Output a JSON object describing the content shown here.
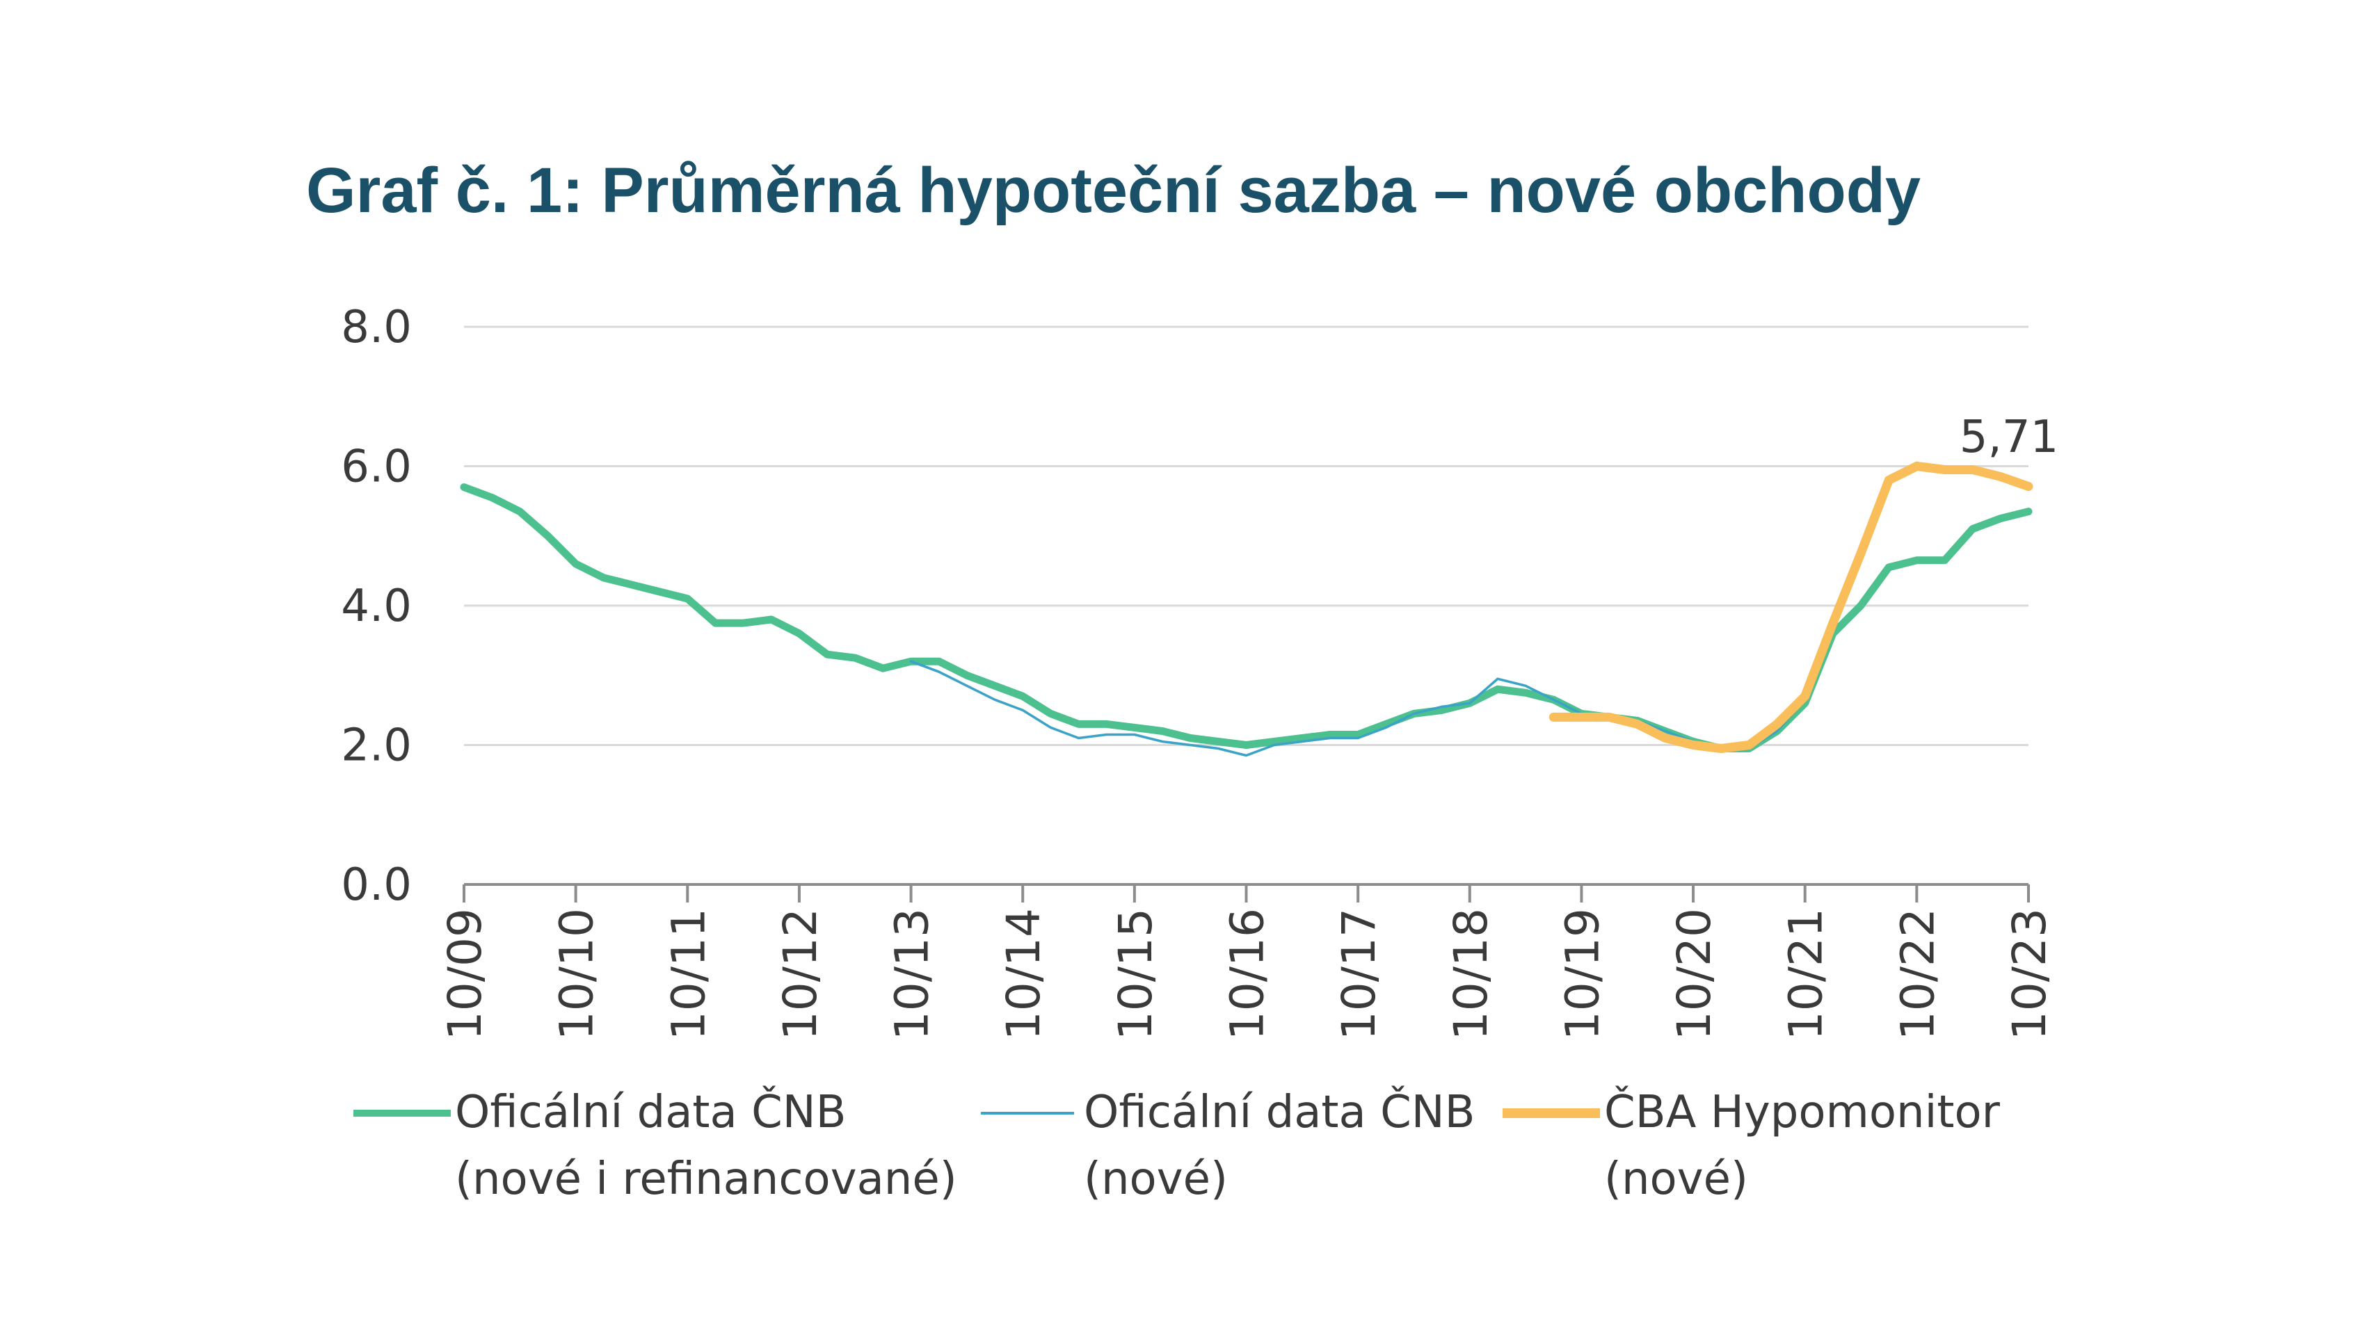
{
  "chart_data": {
    "type": "line",
    "title": "Graf č. 1: Průměrná hypoteční sazba – nové obchody",
    "xlabel": "",
    "ylabel": "",
    "ylim": [
      0,
      8
    ],
    "yticks": [
      "0.0",
      "2.0",
      "4.0",
      "6.0",
      "8.0"
    ],
    "xticks": [
      "10/09",
      "10/10",
      "10/11",
      "10/12",
      "10/13",
      "10/14",
      "10/15",
      "10/16",
      "10/17",
      "10/18",
      "10/19",
      "10/20",
      "10/21",
      "10/22",
      "10/23"
    ],
    "grid": "horizontal",
    "legend_position": "bottom",
    "annotation": "5,71",
    "series": [
      {
        "name_line1": "Oficální data ČNB",
        "name_line2": "(nové i refinancované)",
        "color": "#4dc08f",
        "x": [
          "10/09",
          "01/10",
          "04/10",
          "07/10",
          "10/10",
          "01/11",
          "04/11",
          "07/11",
          "10/11",
          "01/12",
          "04/12",
          "07/12",
          "10/12",
          "01/13",
          "04/13",
          "07/13",
          "10/13",
          "01/14",
          "04/14",
          "07/14",
          "10/14",
          "01/15",
          "04/15",
          "07/15",
          "10/15",
          "01/16",
          "04/16",
          "07/16",
          "10/16",
          "01/17",
          "04/17",
          "07/17",
          "10/17",
          "01/18",
          "04/18",
          "07/18",
          "10/18",
          "01/19",
          "04/19",
          "07/19",
          "10/19",
          "01/20",
          "04/20",
          "07/20",
          "10/20",
          "01/21",
          "04/21",
          "07/21",
          "10/21",
          "01/22",
          "04/22",
          "07/22",
          "10/22",
          "01/23",
          "04/23",
          "07/23",
          "10/23"
        ],
        "values": [
          5.7,
          5.55,
          5.35,
          5.0,
          4.6,
          4.4,
          4.3,
          4.2,
          4.1,
          3.75,
          3.75,
          3.8,
          3.6,
          3.3,
          3.25,
          3.1,
          3.2,
          3.2,
          3.0,
          2.85,
          2.7,
          2.45,
          2.3,
          2.3,
          2.25,
          2.2,
          2.1,
          2.05,
          2.0,
          2.05,
          2.1,
          2.15,
          2.15,
          2.3,
          2.45,
          2.5,
          2.6,
          2.8,
          2.75,
          2.65,
          2.45,
          2.4,
          2.35,
          2.2,
          2.05,
          1.95,
          1.95,
          2.2,
          2.6,
          3.6,
          4.0,
          4.55,
          4.65,
          4.65,
          5.1,
          5.25,
          5.35
        ]
      },
      {
        "name_line1": "Oficální data ČNB",
        "name_line2": "(nové)",
        "color": "#3aa3c7",
        "x": [
          "10/13",
          "01/14",
          "04/14",
          "07/14",
          "10/14",
          "01/15",
          "04/15",
          "07/15",
          "10/15",
          "01/16",
          "04/16",
          "07/16",
          "10/16",
          "01/17",
          "04/17",
          "07/17",
          "10/17",
          "01/18",
          "04/18",
          "07/18",
          "10/18",
          "01/19",
          "04/19",
          "07/19",
          "10/19",
          "01/20",
          "04/20",
          "07/20",
          "10/20",
          "01/21",
          "04/21",
          "07/21",
          "10/21",
          "01/22",
          "04/22",
          "07/22",
          "10/22",
          "01/23",
          "04/23",
          "07/23",
          "10/23"
        ],
        "values": [
          3.2,
          3.05,
          2.85,
          2.65,
          2.5,
          2.25,
          2.1,
          2.15,
          2.15,
          2.05,
          2.0,
          1.95,
          1.85,
          2.0,
          2.05,
          2.1,
          2.1,
          2.25,
          2.45,
          2.55,
          2.6,
          2.95,
          2.85,
          2.65,
          2.45,
          2.4,
          2.35,
          2.2,
          2.05,
          1.95,
          1.95,
          2.2,
          2.65,
          3.8,
          4.8,
          5.85,
          6.05,
          5.95,
          5.95,
          5.85,
          5.75
        ]
      },
      {
        "name_line1": "ČBA Hypomonitor",
        "name_line2": "(nové)",
        "color": "#f9bd5a",
        "x": [
          "07/19",
          "10/19",
          "01/20",
          "04/20",
          "07/20",
          "10/20",
          "01/21",
          "04/21",
          "07/21",
          "10/21",
          "01/22",
          "04/22",
          "07/22",
          "10/22",
          "01/23",
          "04/23",
          "07/23",
          "10/23"
        ],
        "values": [
          2.4,
          2.4,
          2.4,
          2.3,
          2.1,
          2.0,
          1.95,
          2.0,
          2.3,
          2.7,
          3.75,
          4.75,
          5.8,
          6.0,
          5.95,
          5.95,
          5.85,
          5.71
        ]
      }
    ]
  }
}
